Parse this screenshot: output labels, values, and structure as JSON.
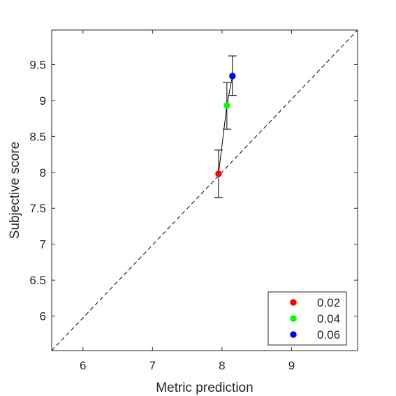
{
  "chart_data": {
    "type": "scatter",
    "title": "",
    "xlabel": "Metric prediction",
    "ylabel": "Subjective score",
    "xlim": [
      5.55,
      9.95
    ],
    "ylim": [
      5.52,
      9.98
    ],
    "xticks": [
      6,
      7,
      8,
      9
    ],
    "xtick_labels": [
      "6",
      "7",
      "8",
      "9"
    ],
    "yticks": [
      6,
      6.5,
      7,
      7.5,
      8,
      8.5,
      9,
      9.5
    ],
    "ytick_labels": [
      "6",
      "6.5",
      "7",
      "7.5",
      "8",
      "8.5",
      "9",
      "9.5"
    ],
    "grid": false,
    "reference_line": {
      "style": "dashed",
      "from": [
        5.55,
        5.52
      ],
      "to": [
        9.95,
        9.98
      ]
    },
    "connect_points": true,
    "series": [
      {
        "name": "0.02",
        "x": 7.95,
        "y": 7.98,
        "err_low": 7.65,
        "err_high": 8.31,
        "color": "#ff0000"
      },
      {
        "name": "0.04",
        "x": 8.07,
        "y": 8.93,
        "err_low": 8.6,
        "err_high": 9.25,
        "color": "#00ff00"
      },
      {
        "name": "0.06",
        "x": 8.15,
        "y": 9.34,
        "err_low": 9.07,
        "err_high": 9.62,
        "color": "#0000ff"
      }
    ],
    "legend": {
      "placement": "bottom-right",
      "entries": [
        "0.02",
        "0.04",
        "0.06"
      ]
    }
  }
}
